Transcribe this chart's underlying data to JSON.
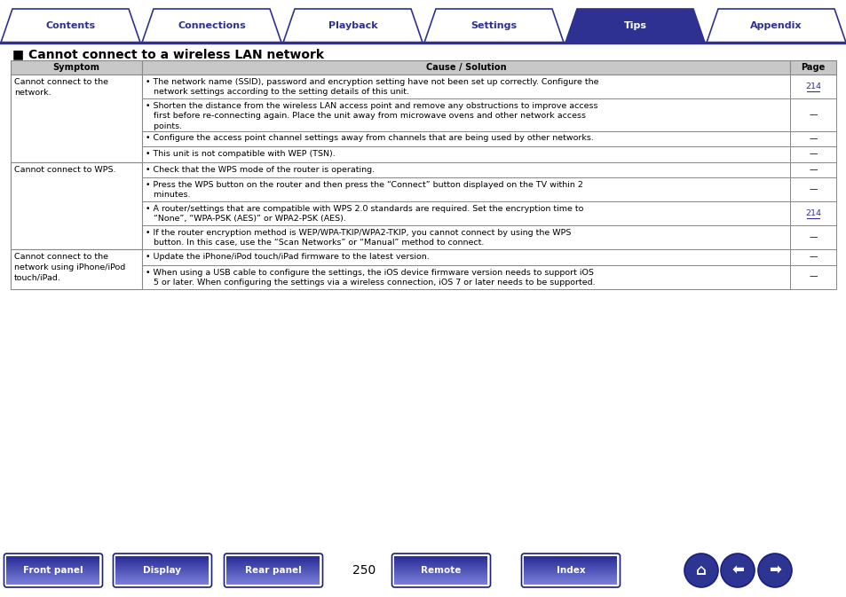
{
  "bg_color": "#ffffff",
  "tab_items": [
    "Contents",
    "Connections",
    "Playback",
    "Settings",
    "Tips",
    "Appendix"
  ],
  "active_tab": "Tips",
  "active_tab_color": "#2e3191",
  "tab_text_color_normal": "#2e3191",
  "tab_text_color_active": "#ffffff",
  "tab_border_color": "#2e3191",
  "section_title": "■ Cannot connect to a wireless LAN network",
  "section_title_color": "#000000",
  "header_row": [
    "Symptom",
    "Cause / Solution",
    "Page"
  ],
  "header_bg": "#c8c8c8",
  "table_border_color": "#888888",
  "rows": [
    {
      "symptom": "Cannot connect to the\nnetwork.",
      "cause_lines": [
        "• The network name (SSID), password and encryption setting have not been set up correctly. Configure the",
        "   network settings according to the setting details of this unit."
      ],
      "page": "214",
      "page_underline": true
    },
    {
      "symptom": "",
      "cause_lines": [
        "• Shorten the distance from the wireless LAN access point and remove any obstructions to improve access",
        "   first before re-connecting again. Place the unit away from microwave ovens and other network access",
        "   points."
      ],
      "page": "—",
      "page_underline": false
    },
    {
      "symptom": "",
      "cause_lines": [
        "• Configure the access point channel settings away from channels that are being used by other networks."
      ],
      "page": "—",
      "page_underline": false
    },
    {
      "symptom": "",
      "cause_lines": [
        "• This unit is not compatible with WEP (TSN)."
      ],
      "page": "—",
      "page_underline": false
    },
    {
      "symptom": "Cannot connect to WPS.",
      "cause_lines": [
        "• Check that the WPS mode of the router is operating."
      ],
      "page": "—",
      "page_underline": false
    },
    {
      "symptom": "",
      "cause_lines": [
        "• Press the WPS button on the router and then press the “Connect” button displayed on the TV within 2",
        "   minutes."
      ],
      "page": "—",
      "page_underline": false
    },
    {
      "symptom": "",
      "cause_lines": [
        "• A router/settings that are compatible with WPS 2.0 standards are required. Set the encryption time to",
        "   “None”, “WPA-PSK (AES)” or WPA2-PSK (AES)."
      ],
      "page": "214",
      "page_underline": true
    },
    {
      "symptom": "",
      "cause_lines": [
        "• If the router encryption method is WEP/WPA-TKIP/WPA2-TKIP, you cannot connect by using the WPS",
        "   button. In this case, use the “Scan Networks” or “Manual” method to connect."
      ],
      "page": "—",
      "page_underline": false
    },
    {
      "symptom": "Cannot connect to the\nnetwork using iPhone/iPod\ntouch/iPad.",
      "cause_lines": [
        "• Update the iPhone/iPod touch/iPad firmware to the latest version."
      ],
      "page": "—",
      "page_underline": false
    },
    {
      "symptom": "",
      "cause_lines": [
        "• When using a USB cable to configure the settings, the iOS device firmware version needs to support iOS",
        "   5 or later. When configuring the settings via a wireless connection, iOS 7 or later needs to be supported."
      ],
      "page": "—",
      "page_underline": false
    }
  ],
  "symptom_groups": [
    {
      "start": 0,
      "end": 3,
      "text": "Cannot connect to the\nnetwork."
    },
    {
      "start": 4,
      "end": 7,
      "text": "Cannot connect to WPS."
    },
    {
      "start": 8,
      "end": 9,
      "text": "Cannot connect to the\nnetwork using iPhone/iPod\ntouch/iPad."
    }
  ],
  "footer_buttons": [
    "Front panel",
    "Display",
    "Rear panel",
    "Remote",
    "Index"
  ],
  "footer_page": "250",
  "nav_btn_color": "#3a3fb8"
}
